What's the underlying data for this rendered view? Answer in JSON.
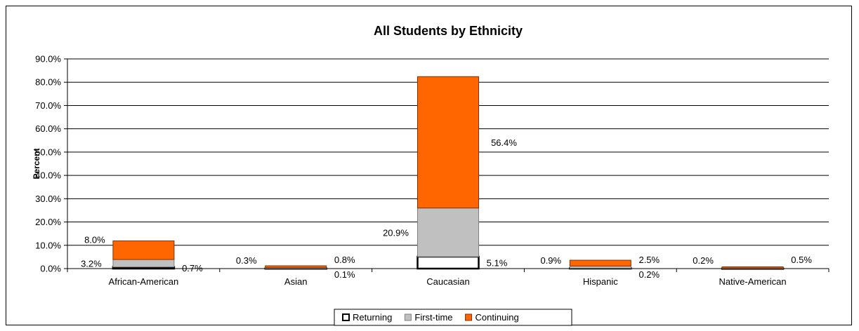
{
  "chart_data": {
    "type": "bar",
    "stacked": true,
    "title": "All Students by Ethnicity",
    "ylabel": "Percent",
    "xlabel": "",
    "ylim": [
      0,
      90
    ],
    "ytick_step": 10,
    "ytick_format": "percent_1dp",
    "grid": true,
    "legend_position": "bottom",
    "categories": [
      "African-American",
      "Asian",
      "Caucasian",
      "Hispanic",
      "Native-American"
    ],
    "series": [
      {
        "name": "Returning",
        "color": "#ffffff",
        "edge": "#000000",
        "values": [
          0.7,
          0.1,
          5.1,
          0.2,
          0.05
        ],
        "labels": [
          "0.7%",
          "0.1%",
          "5.1%",
          "0.2%",
          ""
        ]
      },
      {
        "name": "First-time",
        "color": "#c0c0c0",
        "edge": "#808080",
        "values": [
          3.2,
          0.3,
          20.9,
          0.9,
          0.2
        ],
        "labels": [
          "3.2%",
          "0.3%",
          "20.9%",
          "0.9%",
          "0.2%"
        ]
      },
      {
        "name": "Continuing",
        "color": "#ff6600",
        "edge": "#803300",
        "values": [
          8.0,
          0.8,
          56.4,
          2.5,
          0.5
        ],
        "labels": [
          "8.0%",
          "0.8%",
          "56.4%",
          "2.5%",
          "0.5%"
        ]
      }
    ]
  }
}
